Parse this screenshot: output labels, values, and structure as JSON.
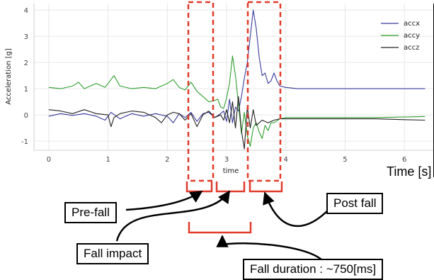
{
  "chart_data": {
    "type": "line",
    "xlabel": "time",
    "ylabel": "Acceleration [g]",
    "xlim": [
      -0.25,
      6.5
    ],
    "ylim": [
      -1.35,
      4.25
    ],
    "xticks": [
      0,
      1,
      2,
      3,
      4,
      5,
      6
    ],
    "yticks": [
      -1,
      0,
      1,
      2,
      3,
      4
    ],
    "grid": true,
    "legend_position": "top-right",
    "series": [
      {
        "name": "accx",
        "color": "#3a3a9c",
        "x": [
          0,
          0.2,
          0.4,
          0.6,
          0.8,
          0.95,
          1.05,
          1.2,
          1.4,
          1.6,
          1.8,
          2.0,
          2.1,
          2.2,
          2.3,
          2.4,
          2.5,
          2.6,
          2.7,
          2.8,
          2.9,
          2.95,
          3.0,
          3.05,
          3.1,
          3.15,
          3.2,
          3.25,
          3.3,
          3.35,
          3.4,
          3.45,
          3.5,
          3.55,
          3.6,
          3.65,
          3.7,
          3.75,
          3.8,
          3.85,
          3.9,
          4.0,
          4.2,
          4.6,
          5.0,
          5.5,
          6.0,
          6.35
        ],
        "y": [
          -0.05,
          0.05,
          -0.02,
          0.05,
          -0.05,
          -0.2,
          0.1,
          -0.15,
          0.05,
          -0.05,
          0.05,
          -0.05,
          -0.3,
          0.05,
          -0.1,
          0.1,
          -0.25,
          0.05,
          0.1,
          -0.1,
          0.05,
          0.15,
          -0.25,
          0.6,
          -0.3,
          0.3,
          0.15,
          0.7,
          1.4,
          2.0,
          3.0,
          4.0,
          3.3,
          2.2,
          1.5,
          1.6,
          1.2,
          1.3,
          1.6,
          1.3,
          1.1,
          1.05,
          1.0,
          1.0,
          1.0,
          1.0,
          1.0,
          1.0
        ]
      },
      {
        "name": "accy",
        "color": "#2e9e2e",
        "x": [
          0,
          0.2,
          0.4,
          0.5,
          0.6,
          0.8,
          0.95,
          1.05,
          1.1,
          1.2,
          1.4,
          1.6,
          1.8,
          2.0,
          2.1,
          2.2,
          2.3,
          2.4,
          2.5,
          2.6,
          2.7,
          2.8,
          2.85,
          2.9,
          2.95,
          3.0,
          3.05,
          3.1,
          3.15,
          3.2,
          3.25,
          3.3,
          3.35,
          3.4,
          3.45,
          3.5,
          3.55,
          3.6,
          3.65,
          3.7,
          3.75,
          3.8,
          3.9,
          4.0,
          4.2,
          4.6,
          5.0,
          5.5,
          6.0,
          6.35
        ],
        "y": [
          1.05,
          1.0,
          1.1,
          1.25,
          1.0,
          1.2,
          1.05,
          1.35,
          1.5,
          1.1,
          1.0,
          1.05,
          1.0,
          1.2,
          1.35,
          1.05,
          0.95,
          1.25,
          0.9,
          0.7,
          0.5,
          0.55,
          0.6,
          0.3,
          0.25,
          0.65,
          1.2,
          2.25,
          1.5,
          0.4,
          -0.7,
          0.1,
          -0.8,
          -1.2,
          -0.5,
          -0.3,
          -0.65,
          -0.9,
          -0.4,
          -0.6,
          -0.3,
          -0.3,
          -0.15,
          -0.1,
          -0.1,
          -0.1,
          -0.1,
          -0.1,
          -0.08,
          -0.06
        ]
      },
      {
        "name": "accz",
        "color": "#222222",
        "x": [
          0,
          0.2,
          0.4,
          0.6,
          0.8,
          1.0,
          1.05,
          1.1,
          1.2,
          1.4,
          1.6,
          1.8,
          1.9,
          2.0,
          2.1,
          2.2,
          2.3,
          2.4,
          2.5,
          2.6,
          2.7,
          2.8,
          2.9,
          2.95,
          3.0,
          3.05,
          3.1,
          3.15,
          3.2,
          3.25,
          3.3,
          3.35,
          3.4,
          3.45,
          3.5,
          3.6,
          3.7,
          3.8,
          3.9,
          4.0,
          4.5,
          5.0,
          5.5,
          6.0,
          6.35
        ],
        "y": [
          0.2,
          0.15,
          0.05,
          0.2,
          0.05,
          0.0,
          -0.45,
          -0.1,
          0.05,
          0.15,
          0.1,
          -0.1,
          -0.3,
          0.0,
          0.1,
          0.05,
          -0.2,
          0.05,
          -0.45,
          0.0,
          0.15,
          -0.1,
          0.0,
          -0.2,
          0.2,
          -0.3,
          0.5,
          -0.5,
          0.7,
          -0.6,
          -1.3,
          0.3,
          -0.5,
          0.2,
          -0.4,
          -0.2,
          -0.3,
          -0.2,
          -0.15,
          -0.15,
          -0.15,
          -0.15,
          -0.15,
          -0.18,
          -0.2
        ]
      }
    ],
    "annotations": {
      "bracket_color": "#e03a2a",
      "time_label": "Time [s]",
      "pre_fall": "Pre-fall",
      "fall_impact": "Fall impact",
      "post_fall": "Post fall",
      "fall_duration": "Fall duration : ~750[ms]"
    }
  }
}
